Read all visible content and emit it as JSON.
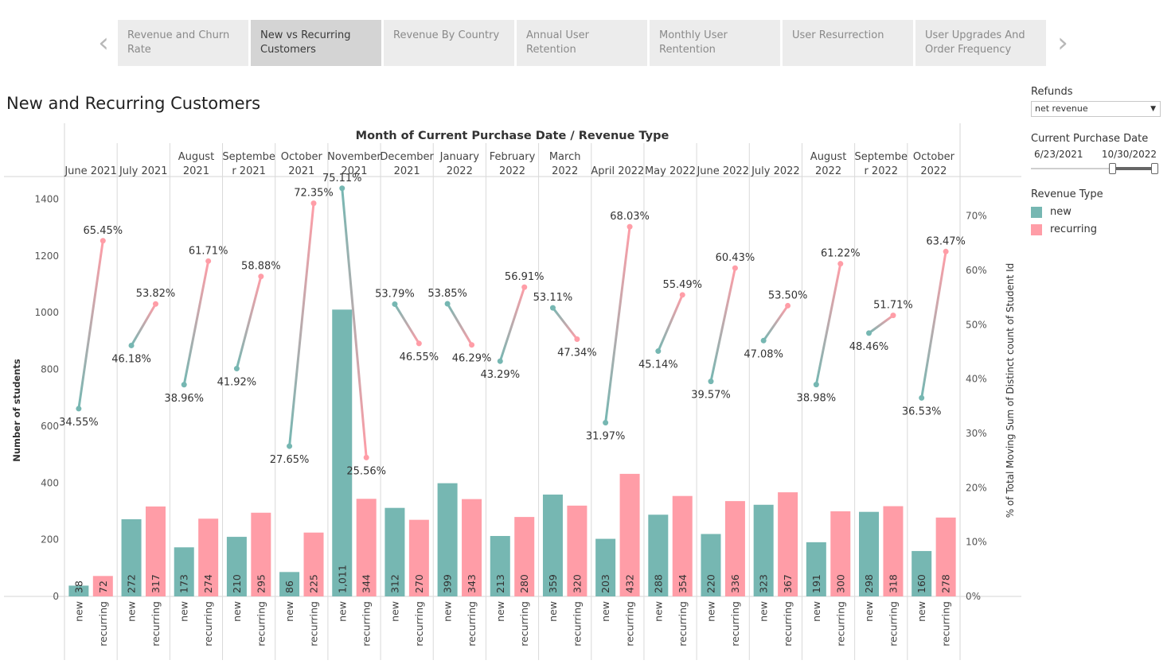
{
  "tabs": [
    {
      "label": "Revenue and Churn Rate",
      "active": false
    },
    {
      "label": "New vs Recurring Customers",
      "active": true
    },
    {
      "label": "Revenue By Country",
      "active": false
    },
    {
      "label": "Annual User Retention",
      "active": false
    },
    {
      "label": "Monthly User Rentention",
      "active": false
    },
    {
      "label": "User Resurrection",
      "active": false
    },
    {
      "label": "User Upgrades And Order Frequency",
      "active": false
    }
  ],
  "nav": {
    "prev": "‹",
    "next": "›",
    "prev_icon": "chevron-left-icon",
    "next_icon": "chevron-right-icon"
  },
  "page_title": "New and Recurring Customers",
  "filters": {
    "refunds_label": "Refunds",
    "refunds_value": "net revenue",
    "date_label": "Current Purchase Date",
    "date_start": "6/23/2021",
    "date_end": "10/30/2022",
    "legend_label": "Revenue Type"
  },
  "colors": {
    "new": "#76b7b2",
    "recurring": "#ff9da7"
  },
  "chart_data": {
    "type": "bar",
    "title": "Month of Current Purchase Date / Revenue Type",
    "ylabel": "Number of students",
    "y2label": "% of Total Moving Sum of Distinct count of Student Id",
    "ylim": [
      0,
      1480
    ],
    "yticks": [
      0,
      200,
      400,
      600,
      800,
      1000,
      1200,
      1400
    ],
    "y2lim": [
      0,
      0.7727
    ],
    "y2ticks": [
      "0%",
      "10%",
      "20%",
      "30%",
      "40%",
      "50%",
      "60%",
      "70%"
    ],
    "sub_categories": [
      "new",
      "recurring"
    ],
    "categories": [
      "June 2021",
      "July 2021",
      "August 2021",
      "September 2021",
      "October 2021",
      "November 2021",
      "December 2021",
      "January 2022",
      "February 2022",
      "March 2022",
      "April 2022",
      "May 2022",
      "June 2022",
      "July 2022",
      "August 2022",
      "September 2022",
      "October 2022"
    ],
    "header_lines": [
      [
        "June 2021"
      ],
      [
        "July 2021"
      ],
      [
        "August",
        "2021"
      ],
      [
        "Septembe",
        "r 2021"
      ],
      [
        "October",
        "2021"
      ],
      [
        "November",
        "2021"
      ],
      [
        "December",
        "2021"
      ],
      [
        "January",
        "2022"
      ],
      [
        "February",
        "2022"
      ],
      [
        "March",
        "2022"
      ],
      [
        "April 2022"
      ],
      [
        "May 2022"
      ],
      [
        "June 2022"
      ],
      [
        "July 2022"
      ],
      [
        "August",
        "2022"
      ],
      [
        "Septembe",
        "r 2022"
      ],
      [
        "October",
        "2022"
      ]
    ],
    "series": [
      {
        "name": "new",
        "values": [
          38,
          272,
          173,
          210,
          86,
          1011,
          312,
          399,
          213,
          359,
          203,
          288,
          220,
          323,
          191,
          298,
          160
        ],
        "pct": [
          0.3455,
          0.4618,
          0.3896,
          0.4192,
          0.2765,
          0.7511,
          0.5379,
          0.5385,
          0.4329,
          0.5311,
          0.3197,
          0.4514,
          0.3957,
          0.4708,
          0.3898,
          0.4846,
          0.3653
        ]
      },
      {
        "name": "recurring",
        "values": [
          72,
          317,
          274,
          295,
          225,
          344,
          270,
          343,
          280,
          320,
          432,
          354,
          336,
          367,
          300,
          318,
          278
        ],
        "pct": [
          0.6545,
          0.5382,
          0.6171,
          0.5888,
          0.7235,
          0.2556,
          0.4655,
          0.4629,
          0.5691,
          0.4734,
          0.6803,
          0.5549,
          0.6043,
          0.535,
          0.6122,
          0.5171,
          0.6347
        ]
      }
    ],
    "bar_labels": {
      "new": [
        "38",
        "272",
        "173",
        "210",
        "86",
        "1,011",
        "312",
        "399",
        "213",
        "359",
        "203",
        "288",
        "220",
        "323",
        "191",
        "298",
        "160"
      ],
      "recurring": [
        "72",
        "317",
        "274",
        "295",
        "225",
        "344",
        "270",
        "343",
        "280",
        "320",
        "432",
        "354",
        "336",
        "367",
        "300",
        "318",
        "278"
      ]
    },
    "pct_labels": {
      "new": [
        "34.55%",
        "46.18%",
        "38.96%",
        "41.92%",
        "27.65%",
        "75.11%",
        "53.79%",
        "53.85%",
        "43.29%",
        "53.11%",
        "31.97%",
        "45.14%",
        "39.57%",
        "47.08%",
        "38.98%",
        "48.46%",
        "36.53%"
      ],
      "recurring": [
        "65.45%",
        "53.82%",
        "61.71%",
        "58.88%",
        "72.35%",
        "25.56%",
        "46.55%",
        "46.29%",
        "56.91%",
        "47.34%",
        "68.03%",
        "55.49%",
        "60.43%",
        "53.50%",
        "61.22%",
        "51.71%",
        "63.47%"
      ]
    },
    "legend": "right",
    "grid": false
  }
}
